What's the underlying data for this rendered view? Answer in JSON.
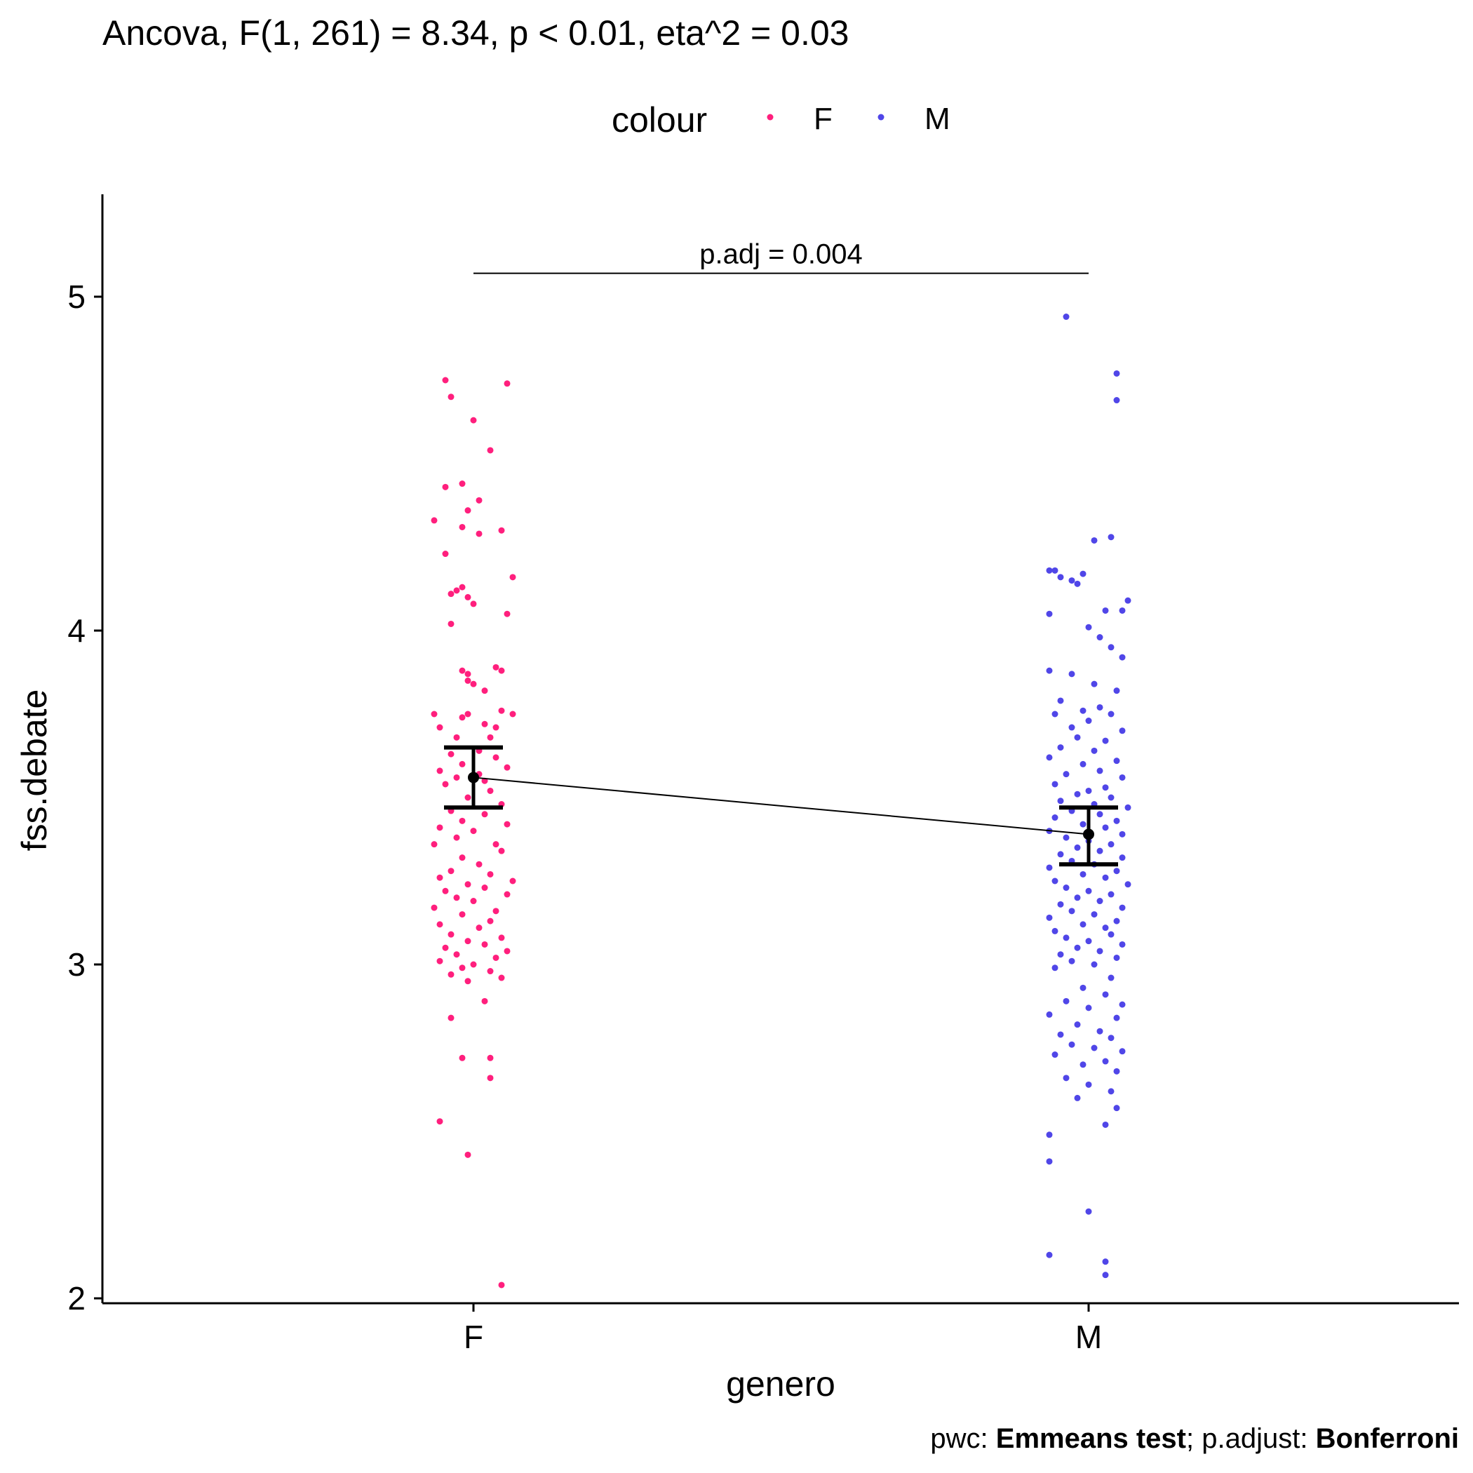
{
  "chart_data": {
    "type": "scatter",
    "title": "Ancova, F(1, 261) = 8.34, p < 0.01, eta^2 = 0.03",
    "xlabel": "genero",
    "ylabel": "fss.debate",
    "categories": [
      "F",
      "M"
    ],
    "y_ticks": [
      2,
      3,
      4,
      5
    ],
    "ylim": [
      1.9,
      5.2
    ],
    "grid": false,
    "legend": {
      "title": "colour",
      "position": "top",
      "items": [
        {
          "label": "F",
          "color": "#ff1f7d"
        },
        {
          "label": "M",
          "color": "#5046e8"
        }
      ]
    },
    "comparison": {
      "label": "p.adj = 0.004",
      "y": 5.07,
      "from": "F",
      "to": "M"
    },
    "caption": {
      "prefix": "pwc: ",
      "method": "Emmeans test",
      "middle": "; p.adjust: ",
      "adjust": "Bonferroni"
    },
    "means": [
      {
        "category": "F",
        "mean": 3.56,
        "lower": 3.47,
        "upper": 3.65
      },
      {
        "category": "M",
        "mean": 3.39,
        "lower": 3.3,
        "upper": 3.47
      }
    ],
    "series": [
      {
        "name": "F",
        "color": "#ff1f7d",
        "points": [
          [
            -0.05,
            4.75
          ],
          [
            0.06,
            4.74
          ],
          [
            -0.04,
            4.7
          ],
          [
            0.0,
            4.63
          ],
          [
            0.03,
            4.54
          ],
          [
            -0.05,
            4.43
          ],
          [
            -0.02,
            4.44
          ],
          [
            0.01,
            4.39
          ],
          [
            -0.01,
            4.36
          ],
          [
            -0.07,
            4.33
          ],
          [
            0.05,
            4.3
          ],
          [
            -0.02,
            4.31
          ],
          [
            0.01,
            4.29
          ],
          [
            -0.05,
            4.23
          ],
          [
            0.07,
            4.16
          ],
          [
            -0.02,
            4.13
          ],
          [
            -0.03,
            4.12
          ],
          [
            -0.01,
            4.1
          ],
          [
            -0.04,
            4.11
          ],
          [
            0.0,
            4.08
          ],
          [
            0.06,
            4.05
          ],
          [
            -0.04,
            4.02
          ],
          [
            -0.02,
            3.88
          ],
          [
            0.04,
            3.89
          ],
          [
            0.05,
            3.88
          ],
          [
            -0.01,
            3.87
          ],
          [
            -0.01,
            3.85
          ],
          [
            0.0,
            3.84
          ],
          [
            0.02,
            3.82
          ],
          [
            0.05,
            3.76
          ],
          [
            0.07,
            3.75
          ],
          [
            -0.07,
            3.75
          ],
          [
            -0.01,
            3.75
          ],
          [
            -0.02,
            3.74
          ],
          [
            0.02,
            3.72
          ],
          [
            -0.06,
            3.71
          ],
          [
            0.04,
            3.71
          ],
          [
            -0.03,
            3.68
          ],
          [
            0.03,
            3.68
          ],
          [
            0.01,
            3.64
          ],
          [
            -0.04,
            3.63
          ],
          [
            0.04,
            3.62
          ],
          [
            -0.02,
            3.6
          ],
          [
            0.06,
            3.59
          ],
          [
            -0.06,
            3.58
          ],
          [
            0.01,
            3.57
          ],
          [
            -0.03,
            3.56
          ],
          [
            0.02,
            3.55
          ],
          [
            -0.05,
            3.54
          ],
          [
            0.03,
            3.52
          ],
          [
            -0.01,
            3.5
          ],
          [
            0.05,
            3.48
          ],
          [
            -0.04,
            3.46
          ],
          [
            0.02,
            3.45
          ],
          [
            -0.02,
            3.43
          ],
          [
            0.06,
            3.42
          ],
          [
            -0.06,
            3.41
          ],
          [
            0.0,
            3.4
          ],
          [
            -0.03,
            3.38
          ],
          [
            0.04,
            3.36
          ],
          [
            -0.07,
            3.36
          ],
          [
            0.05,
            3.34
          ],
          [
            -0.02,
            3.32
          ],
          [
            0.01,
            3.3
          ],
          [
            -0.04,
            3.28
          ],
          [
            0.03,
            3.27
          ],
          [
            -0.06,
            3.26
          ],
          [
            0.07,
            3.25
          ],
          [
            -0.01,
            3.24
          ],
          [
            0.02,
            3.23
          ],
          [
            -0.05,
            3.22
          ],
          [
            0.06,
            3.21
          ],
          [
            -0.03,
            3.2
          ],
          [
            0.0,
            3.19
          ],
          [
            -0.07,
            3.17
          ],
          [
            0.04,
            3.16
          ],
          [
            -0.02,
            3.15
          ],
          [
            0.03,
            3.13
          ],
          [
            -0.06,
            3.12
          ],
          [
            0.01,
            3.11
          ],
          [
            -0.04,
            3.09
          ],
          [
            0.05,
            3.08
          ],
          [
            -0.01,
            3.07
          ],
          [
            0.02,
            3.06
          ],
          [
            -0.05,
            3.05
          ],
          [
            0.06,
            3.04
          ],
          [
            -0.03,
            3.03
          ],
          [
            0.04,
            3.02
          ],
          [
            -0.06,
            3.01
          ],
          [
            0.0,
            3.0
          ],
          [
            -0.02,
            2.99
          ],
          [
            0.03,
            2.98
          ],
          [
            -0.04,
            2.97
          ],
          [
            0.05,
            2.96
          ],
          [
            -0.01,
            2.95
          ],
          [
            0.02,
            2.89
          ],
          [
            -0.04,
            2.84
          ],
          [
            -0.02,
            2.72
          ],
          [
            0.03,
            2.72
          ],
          [
            0.03,
            2.66
          ],
          [
            -0.06,
            2.53
          ],
          [
            -0.01,
            2.43
          ],
          [
            0.05,
            2.04
          ]
        ]
      },
      {
        "name": "M",
        "color": "#5046e8",
        "points": [
          [
            -0.04,
            4.94
          ],
          [
            0.05,
            4.77
          ],
          [
            0.05,
            4.69
          ],
          [
            0.04,
            4.28
          ],
          [
            0.01,
            4.27
          ],
          [
            -0.07,
            4.18
          ],
          [
            -0.06,
            4.18
          ],
          [
            -0.05,
            4.16
          ],
          [
            -0.03,
            4.15
          ],
          [
            -0.02,
            4.14
          ],
          [
            -0.01,
            4.17
          ],
          [
            0.07,
            4.09
          ],
          [
            0.06,
            4.06
          ],
          [
            0.03,
            4.06
          ],
          [
            -0.07,
            4.05
          ],
          [
            0.0,
            4.01
          ],
          [
            0.02,
            3.98
          ],
          [
            0.04,
            3.95
          ],
          [
            0.06,
            3.92
          ],
          [
            -0.07,
            3.88
          ],
          [
            -0.03,
            3.87
          ],
          [
            0.01,
            3.84
          ],
          [
            0.05,
            3.82
          ],
          [
            -0.05,
            3.79
          ],
          [
            0.02,
            3.77
          ],
          [
            -0.01,
            3.76
          ],
          [
            0.04,
            3.75
          ],
          [
            -0.06,
            3.75
          ],
          [
            0.0,
            3.73
          ],
          [
            -0.03,
            3.71
          ],
          [
            0.06,
            3.7
          ],
          [
            -0.02,
            3.68
          ],
          [
            0.03,
            3.67
          ],
          [
            -0.05,
            3.65
          ],
          [
            0.01,
            3.64
          ],
          [
            -0.07,
            3.62
          ],
          [
            0.05,
            3.61
          ],
          [
            -0.01,
            3.6
          ],
          [
            0.02,
            3.58
          ],
          [
            -0.04,
            3.57
          ],
          [
            0.06,
            3.56
          ],
          [
            -0.06,
            3.54
          ],
          [
            0.03,
            3.53
          ],
          [
            0.0,
            3.52
          ],
          [
            -0.02,
            3.51
          ],
          [
            0.04,
            3.5
          ],
          [
            -0.05,
            3.49
          ],
          [
            0.01,
            3.48
          ],
          [
            0.07,
            3.47
          ],
          [
            -0.03,
            3.46
          ],
          [
            0.02,
            3.45
          ],
          [
            -0.06,
            3.44
          ],
          [
            0.05,
            3.43
          ],
          [
            -0.01,
            3.42
          ],
          [
            0.03,
            3.41
          ],
          [
            -0.07,
            3.4
          ],
          [
            0.06,
            3.39
          ],
          [
            -0.04,
            3.38
          ],
          [
            0.0,
            3.37
          ],
          [
            0.04,
            3.36
          ],
          [
            -0.02,
            3.35
          ],
          [
            0.02,
            3.34
          ],
          [
            -0.05,
            3.33
          ],
          [
            0.06,
            3.32
          ],
          [
            -0.03,
            3.31
          ],
          [
            0.01,
            3.3
          ],
          [
            -0.07,
            3.29
          ],
          [
            0.05,
            3.28
          ],
          [
            -0.01,
            3.27
          ],
          [
            0.03,
            3.26
          ],
          [
            -0.06,
            3.25
          ],
          [
            0.07,
            3.24
          ],
          [
            -0.04,
            3.23
          ],
          [
            0.0,
            3.22
          ],
          [
            0.04,
            3.21
          ],
          [
            -0.02,
            3.2
          ],
          [
            0.02,
            3.19
          ],
          [
            -0.05,
            3.18
          ],
          [
            0.06,
            3.17
          ],
          [
            -0.03,
            3.16
          ],
          [
            0.01,
            3.15
          ],
          [
            -0.07,
            3.14
          ],
          [
            0.05,
            3.13
          ],
          [
            -0.01,
            3.12
          ],
          [
            0.03,
            3.11
          ],
          [
            -0.06,
            3.1
          ],
          [
            0.04,
            3.09
          ],
          [
            -0.04,
            3.08
          ],
          [
            0.0,
            3.07
          ],
          [
            0.06,
            3.06
          ],
          [
            -0.02,
            3.05
          ],
          [
            0.02,
            3.04
          ],
          [
            -0.05,
            3.03
          ],
          [
            0.05,
            3.02
          ],
          [
            -0.03,
            3.01
          ],
          [
            0.01,
            3.0
          ],
          [
            -0.06,
            2.99
          ],
          [
            0.04,
            2.96
          ],
          [
            -0.01,
            2.93
          ],
          [
            0.03,
            2.91
          ],
          [
            -0.04,
            2.89
          ],
          [
            0.06,
            2.88
          ],
          [
            0.0,
            2.87
          ],
          [
            -0.07,
            2.85
          ],
          [
            0.05,
            2.84
          ],
          [
            -0.02,
            2.82
          ],
          [
            0.02,
            2.8
          ],
          [
            -0.05,
            2.79
          ],
          [
            0.04,
            2.78
          ],
          [
            -0.03,
            2.76
          ],
          [
            0.01,
            2.75
          ],
          [
            0.06,
            2.74
          ],
          [
            -0.06,
            2.73
          ],
          [
            0.03,
            2.71
          ],
          [
            -0.01,
            2.7
          ],
          [
            0.05,
            2.68
          ],
          [
            -0.04,
            2.66
          ],
          [
            0.0,
            2.64
          ],
          [
            0.04,
            2.62
          ],
          [
            -0.02,
            2.6
          ],
          [
            0.05,
            2.57
          ],
          [
            0.03,
            2.52
          ],
          [
            -0.07,
            2.49
          ],
          [
            -0.07,
            2.41
          ],
          [
            0.0,
            2.26
          ],
          [
            -0.07,
            2.13
          ],
          [
            0.03,
            2.11
          ],
          [
            0.03,
            2.07
          ]
        ]
      }
    ]
  }
}
